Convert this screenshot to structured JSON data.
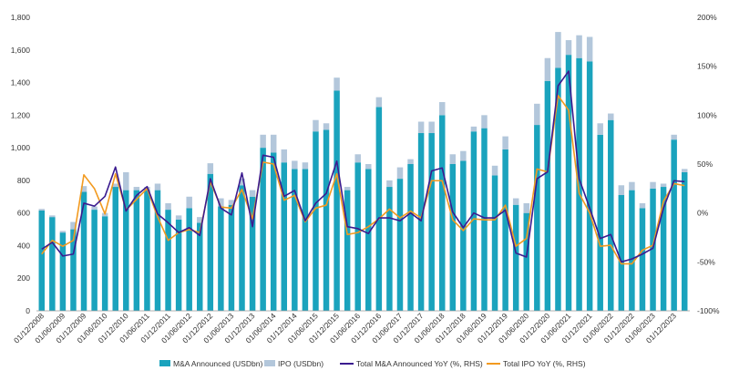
{
  "chart_data": {
    "type": "bar",
    "title": "",
    "xlabel": "",
    "ylabel": "",
    "ylim": [
      0,
      1800
    ],
    "y2lim": [
      -100,
      200
    ],
    "yticks": [
      "0",
      "200",
      "400",
      "600",
      "800",
      "1,000",
      "1,200",
      "1,400",
      "1,600",
      "1,800"
    ],
    "y2ticks": [
      "-100%",
      "-50%",
      "0%",
      "50%",
      "100%",
      "150%",
      "200%"
    ],
    "categories": [
      "01/12/2008",
      "01/03/2009",
      "01/06/2009",
      "01/09/2009",
      "01/12/2009",
      "01/03/2010",
      "01/06/2010",
      "01/09/2010",
      "01/12/2010",
      "01/03/2011",
      "01/06/2011",
      "01/09/2011",
      "01/12/2011",
      "01/03/2012",
      "01/06/2012",
      "01/09/2012",
      "01/12/2012",
      "01/03/2013",
      "01/06/2013",
      "01/09/2013",
      "01/12/2013",
      "01/03/2014",
      "01/06/2014",
      "01/09/2014",
      "01/12/2014",
      "01/03/2015",
      "01/06/2015",
      "01/09/2015",
      "01/12/2015",
      "01/03/2016",
      "01/06/2016",
      "01/09/2016",
      "01/12/2016",
      "01/03/2017",
      "01/06/2017",
      "01/09/2017",
      "01/12/2017",
      "01/03/2018",
      "01/06/2018",
      "01/09/2018",
      "01/12/2018",
      "01/03/2019",
      "01/06/2019",
      "01/09/2019",
      "01/12/2019",
      "01/03/2020",
      "01/06/2020",
      "01/09/2020",
      "01/12/2020",
      "01/03/2021",
      "01/06/2021",
      "01/09/2021",
      "01/12/2021",
      "01/03/2022",
      "01/06/2022",
      "01/09/2022",
      "01/12/2022",
      "01/03/2023",
      "01/06/2023",
      "01/09/2023",
      "01/12/2023",
      "01/03/2024"
    ],
    "xtick_labels": [
      "01/12/2008",
      "01/06/2009",
      "01/12/2009",
      "01/06/2010",
      "01/12/2010",
      "01/06/2011",
      "01/12/2011",
      "01/06/2012",
      "01/12/2012",
      "01/06/2013",
      "01/12/2013",
      "01/06/2014",
      "01/12/2014",
      "01/06/2015",
      "01/12/2015",
      "01/06/2016",
      "01/12/2016",
      "01/06/2017",
      "01/12/2017",
      "01/06/2018",
      "01/12/2018",
      "01/06/2019",
      "01/12/2019",
      "01/06/2020",
      "01/12/2020",
      "01/06/2021",
      "01/12/2021",
      "01/06/2022",
      "01/12/2022",
      "01/06/2023",
      "01/12/2023"
    ],
    "series": [
      {
        "name": "M&A Announced (USDbn)",
        "type": "bar",
        "axis": "left",
        "color": "#1aa3bd",
        "values": [
          615,
          575,
          480,
          500,
          730,
          620,
          580,
          760,
          740,
          740,
          740,
          740,
          620,
          560,
          630,
          540,
          840,
          640,
          650,
          770,
          700,
          1000,
          970,
          910,
          870,
          870,
          1100,
          1110,
          1350,
          740,
          910,
          870,
          1250,
          760,
          810,
          900,
          1090,
          1090,
          1200,
          900,
          920,
          1100,
          1120,
          830,
          990,
          650,
          600,
          1140,
          1410,
          1490,
          1570,
          1550,
          1530,
          1080,
          1170,
          710,
          740,
          630,
          750,
          760,
          1050,
          850
        ]
      },
      {
        "name": "IPO (USDbn)",
        "type": "bar",
        "axis": "left",
        "color": "#b3c7db",
        "values": [
          10,
          10,
          10,
          45,
          35,
          20,
          20,
          20,
          110,
          20,
          20,
          40,
          40,
          25,
          70,
          35,
          65,
          50,
          30,
          40,
          40,
          80,
          110,
          80,
          50,
          40,
          70,
          40,
          80,
          20,
          50,
          30,
          60,
          40,
          70,
          30,
          70,
          70,
          80,
          60,
          60,
          30,
          80,
          60,
          80,
          40,
          60,
          130,
          140,
          220,
          90,
          140,
          150,
          70,
          40,
          60,
          50,
          30,
          40,
          20,
          30,
          20
        ]
      },
      {
        "name": "Total M&A Announced YoY (%, RHS)",
        "type": "line",
        "axis": "right",
        "color": "#3b1b8f",
        "values": [
          -37,
          -30,
          -44,
          -42,
          10,
          7,
          17,
          47,
          2,
          18,
          27,
          -1,
          -10,
          -20,
          -15,
          -23,
          35,
          5,
          -2,
          41,
          -14,
          59,
          57,
          17,
          23,
          -8,
          10,
          20,
          53,
          -14,
          -16,
          -21,
          -5,
          -5,
          -8,
          0,
          -8,
          43,
          46,
          1,
          -15,
          0,
          -5,
          -5,
          3,
          -41,
          -45,
          35,
          42,
          130,
          145,
          35,
          5,
          -26,
          -22,
          -50,
          -47,
          -42,
          -36,
          5,
          33,
          32
        ]
      },
      {
        "name": "Total IPO YoY (%, RHS)",
        "type": "line",
        "axis": "right",
        "color": "#f29a1f",
        "values": [
          -42,
          -28,
          -34,
          -28,
          39,
          25,
          -1,
          40,
          3,
          14,
          25,
          -4,
          -28,
          -20,
          -17,
          -20,
          32,
          6,
          5,
          24,
          -6,
          52,
          50,
          13,
          18,
          -9,
          5,
          8,
          40,
          -22,
          -20,
          -14,
          -6,
          4,
          -5,
          2,
          -5,
          33,
          33,
          -7,
          -18,
          -6,
          -7,
          -7,
          8,
          -34,
          -26,
          45,
          42,
          120,
          105,
          20,
          0,
          -34,
          -33,
          -52,
          -52,
          -38,
          -33,
          12,
          30,
          28
        ]
      }
    ],
    "legend": {
      "placement": "bottom",
      "entries": [
        "M&A Announced (USDbn)",
        "IPO (USDbn)",
        "Total M&A Announced YoY (%, RHS)",
        "Total IPO YoY (%, RHS)"
      ]
    },
    "grid": false
  }
}
